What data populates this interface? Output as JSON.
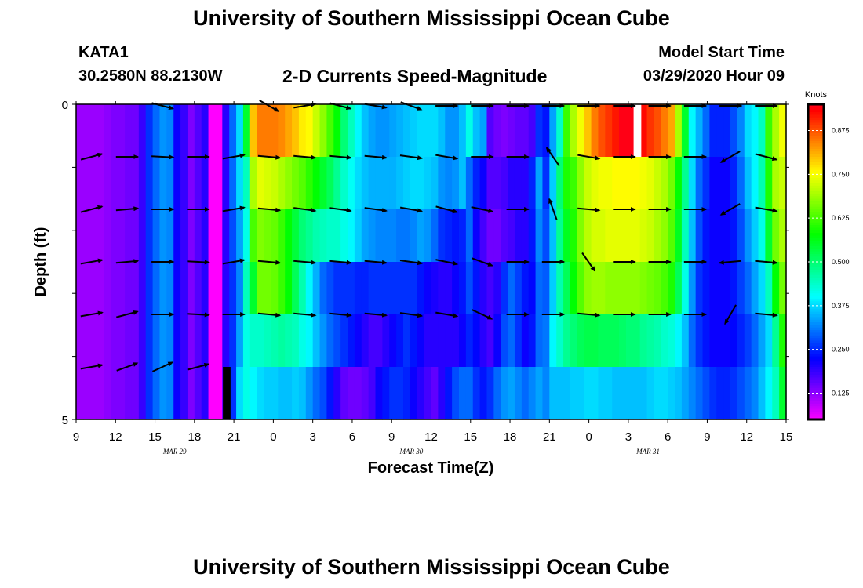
{
  "header": {
    "title": "University of Southern Mississippi Ocean Cube",
    "station": "KATA1",
    "coords": "30.2580N 88.2130W",
    "subtitle": "2-D Currents Speed-Magnitude",
    "model_start_label": "Model Start Time",
    "model_start_value": "03/29/2020 Hour 09"
  },
  "footer": {
    "title": "University of Southern Mississippi Ocean Cube"
  },
  "chart_data": {
    "type": "heatmap",
    "xlabel": "Forecast Time(Z)",
    "ylabel": "Depth (ft)",
    "x_ticks": [
      "9",
      "12",
      "15",
      "18",
      "21",
      "0",
      "3",
      "6",
      "9",
      "12",
      "15",
      "18",
      "21",
      "0",
      "3",
      "6",
      "9",
      "12",
      "15"
    ],
    "date_labels": [
      {
        "label": "MAR 29",
        "tick_index": 2.5
      },
      {
        "label": "MAR 30",
        "tick_index": 8.5
      },
      {
        "label": "MAR 31",
        "tick_index": 14.5
      }
    ],
    "y_ticks": [
      "0",
      "5"
    ],
    "ylim": [
      0,
      5
    ],
    "colorbar": {
      "title": "Knots",
      "ticks": [
        "0.125",
        "0.250",
        "0.375",
        "0.500",
        "0.625",
        "0.750",
        "0.875"
      ],
      "range": [
        0.05,
        0.95
      ]
    },
    "layer_speeds": [
      [
        0.12,
        0.12,
        0.12,
        0.12,
        0.13,
        0.14,
        0.14,
        0.15,
        0.15,
        0.19,
        0.26,
        0.3,
        0.33,
        0.32,
        0.22,
        0.19,
        0.14,
        0.17,
        0.2,
        0.05,
        0.05,
        0.2,
        0.3,
        0.38,
        0.55,
        0.8,
        0.85,
        0.85,
        0.85,
        0.84,
        0.82,
        0.8,
        0.77,
        0.76,
        0.72,
        0.68,
        0.63,
        0.58,
        0.5,
        0.45,
        0.4,
        0.36,
        0.34,
        0.33,
        0.33,
        0.34,
        0.35,
        0.36,
        0.37,
        0.38,
        0.38,
        0.38,
        0.36,
        0.33,
        0.33,
        0.36,
        0.42,
        0.36,
        0.34,
        0.17,
        0.15,
        0.14,
        0.15,
        0.16,
        0.16,
        0.18,
        0.26,
        0.24,
        0.34,
        0.44,
        0.62,
        0.7,
        0.75,
        0.8,
        0.85,
        0.88,
        0.9,
        0.92,
        0.95,
        0.95,
        0.95,
        0.93,
        0.9,
        0.88,
        0.85,
        0.82,
        0.7,
        0.55,
        0.4,
        0.35,
        0.3,
        0.25,
        0.25,
        0.25,
        0.28,
        0.32,
        0.38,
        0.4,
        0.45,
        0.62,
        0.7,
        0.75
      ],
      [
        0.12,
        0.12,
        0.12,
        0.12,
        0.13,
        0.14,
        0.14,
        0.15,
        0.15,
        0.19,
        0.26,
        0.3,
        0.33,
        0.32,
        0.22,
        0.19,
        0.14,
        0.17,
        0.2,
        0.05,
        0.05,
        0.2,
        0.3,
        0.38,
        0.45,
        0.7,
        0.74,
        0.73,
        0.72,
        0.7,
        0.68,
        0.66,
        0.64,
        0.61,
        0.58,
        0.55,
        0.52,
        0.48,
        0.44,
        0.41,
        0.38,
        0.36,
        0.35,
        0.35,
        0.35,
        0.35,
        0.36,
        0.37,
        0.38,
        0.38,
        0.37,
        0.36,
        0.33,
        0.32,
        0.33,
        0.36,
        0.3,
        0.25,
        0.22,
        0.17,
        0.17,
        0.18,
        0.2,
        0.2,
        0.2,
        0.25,
        0.34,
        0.26,
        0.37,
        0.5,
        0.6,
        0.62,
        0.68,
        0.72,
        0.74,
        0.75,
        0.75,
        0.76,
        0.76,
        0.76,
        0.76,
        0.75,
        0.74,
        0.72,
        0.7,
        0.66,
        0.58,
        0.48,
        0.38,
        0.3,
        0.26,
        0.22,
        0.22,
        0.22,
        0.25,
        0.3,
        0.36,
        0.4,
        0.46,
        0.6,
        0.7,
        0.72
      ],
      [
        0.12,
        0.12,
        0.12,
        0.12,
        0.13,
        0.14,
        0.14,
        0.15,
        0.15,
        0.19,
        0.26,
        0.3,
        0.33,
        0.32,
        0.22,
        0.19,
        0.14,
        0.17,
        0.2,
        0.05,
        0.05,
        0.2,
        0.28,
        0.34,
        0.42,
        0.63,
        0.67,
        0.66,
        0.65,
        0.62,
        0.58,
        0.54,
        0.5,
        0.48,
        0.46,
        0.45,
        0.44,
        0.44,
        0.42,
        0.4,
        0.37,
        0.34,
        0.33,
        0.32,
        0.32,
        0.32,
        0.31,
        0.31,
        0.32,
        0.34,
        0.33,
        0.3,
        0.26,
        0.25,
        0.24,
        0.25,
        0.3,
        0.22,
        0.18,
        0.15,
        0.15,
        0.17,
        0.18,
        0.2,
        0.2,
        0.24,
        0.32,
        0.28,
        0.36,
        0.48,
        0.56,
        0.6,
        0.67,
        0.71,
        0.73,
        0.73,
        0.74,
        0.74,
        0.74,
        0.74,
        0.74,
        0.73,
        0.72,
        0.7,
        0.68,
        0.64,
        0.56,
        0.45,
        0.36,
        0.28,
        0.24,
        0.22,
        0.22,
        0.22,
        0.24,
        0.28,
        0.33,
        0.37,
        0.42,
        0.55,
        0.66,
        0.7
      ],
      [
        0.12,
        0.12,
        0.12,
        0.12,
        0.13,
        0.14,
        0.14,
        0.15,
        0.15,
        0.19,
        0.26,
        0.3,
        0.33,
        0.32,
        0.22,
        0.19,
        0.14,
        0.17,
        0.2,
        0.05,
        0.05,
        0.2,
        0.26,
        0.32,
        0.45,
        0.55,
        0.66,
        0.66,
        0.65,
        0.62,
        0.58,
        0.52,
        0.46,
        0.4,
        0.35,
        0.3,
        0.28,
        0.26,
        0.26,
        0.26,
        0.25,
        0.25,
        0.26,
        0.26,
        0.26,
        0.26,
        0.26,
        0.26,
        0.26,
        0.24,
        0.22,
        0.21,
        0.2,
        0.2,
        0.22,
        0.24,
        0.28,
        0.24,
        0.2,
        0.18,
        0.2,
        0.26,
        0.3,
        0.27,
        0.24,
        0.23,
        0.3,
        0.29,
        0.37,
        0.46,
        0.52,
        0.58,
        0.64,
        0.68,
        0.69,
        0.69,
        0.68,
        0.68,
        0.68,
        0.68,
        0.68,
        0.67,
        0.66,
        0.65,
        0.63,
        0.6,
        0.52,
        0.42,
        0.33,
        0.26,
        0.24,
        0.22,
        0.22,
        0.22,
        0.24,
        0.27,
        0.3,
        0.34,
        0.38,
        0.45,
        0.58,
        0.66
      ],
      [
        0.12,
        0.12,
        0.12,
        0.12,
        0.13,
        0.14,
        0.14,
        0.15,
        0.15,
        0.19,
        0.26,
        0.3,
        0.33,
        0.32,
        0.22,
        0.19,
        0.14,
        0.17,
        0.2,
        0.05,
        0.05,
        0.2,
        0.26,
        0.34,
        0.42,
        0.44,
        0.44,
        0.45,
        0.46,
        0.47,
        0.46,
        0.45,
        0.42,
        0.4,
        0.36,
        0.33,
        0.3,
        0.28,
        0.26,
        0.24,
        0.22,
        0.2,
        0.18,
        0.18,
        0.2,
        0.22,
        0.24,
        0.26,
        0.24,
        0.22,
        0.2,
        0.2,
        0.2,
        0.2,
        0.2,
        0.22,
        0.25,
        0.23,
        0.2,
        0.18,
        0.22,
        0.28,
        0.3,
        0.26,
        0.22,
        0.24,
        0.3,
        0.31,
        0.4,
        0.44,
        0.48,
        0.5,
        0.52,
        0.53,
        0.53,
        0.52,
        0.52,
        0.52,
        0.51,
        0.5,
        0.5,
        0.48,
        0.47,
        0.46,
        0.44,
        0.43,
        0.4,
        0.36,
        0.3,
        0.26,
        0.24,
        0.22,
        0.22,
        0.22,
        0.23,
        0.25,
        0.27,
        0.3,
        0.34,
        0.38,
        0.48,
        0.6
      ],
      [
        0.12,
        0.12,
        0.12,
        0.12,
        0.13,
        0.14,
        0.14,
        0.15,
        0.15,
        0.19,
        0.26,
        0.3,
        0.33,
        0.32,
        0.22,
        0.19,
        0.14,
        0.17,
        0.2,
        0.05,
        0.05,
        0.2,
        0.26,
        0.38,
        0.42,
        0.4,
        0.38,
        0.37,
        0.37,
        0.36,
        0.36,
        0.37,
        0.36,
        0.33,
        0.3,
        0.28,
        0.24,
        0.2,
        0.16,
        0.15,
        0.15,
        0.16,
        0.18,
        0.22,
        0.24,
        0.26,
        0.26,
        0.25,
        0.22,
        0.2,
        0.18,
        0.16,
        0.2,
        0.24,
        0.28,
        0.3,
        0.3,
        0.26,
        0.24,
        0.26,
        0.3,
        0.33,
        0.34,
        0.32,
        0.3,
        0.32,
        0.34,
        0.32,
        0.36,
        0.36,
        0.36,
        0.37,
        0.37,
        0.38,
        0.38,
        0.37,
        0.37,
        0.36,
        0.36,
        0.36,
        0.36,
        0.36,
        0.37,
        0.38,
        0.38,
        0.37,
        0.36,
        0.34,
        0.32,
        0.3,
        0.28,
        0.26,
        0.25,
        0.25,
        0.26,
        0.28,
        0.3,
        0.32,
        0.36,
        0.4,
        0.45,
        0.55
      ]
    ],
    "blank_cells": [
      {
        "layer": 0,
        "col": 80
      },
      {
        "layer": 5,
        "col": 21
      }
    ],
    "blank_cell_colors": [
      "#ffffff",
      "#000000"
    ],
    "arrow_times": [
      0.7,
      2.5,
      4.3,
      6.1,
      7.9,
      9.7,
      11.5,
      13.3,
      15.1,
      16.9,
      18.7,
      20.5,
      22.3,
      24.1,
      25.9,
      27.7,
      29.5,
      31.3,
      33.1,
      34.9
    ],
    "vector_dirs_deg": [
      [
        0,
        10,
        -15,
        -20,
        0,
        -30,
        10,
        -15,
        -10,
        -20,
        0,
        0,
        0,
        0,
        0,
        0,
        0,
        0,
        0,
        0
      ],
      [
        15,
        0,
        -3,
        0,
        10,
        -5,
        -5,
        -5,
        -5,
        -8,
        -10,
        0,
        0,
        125,
        -10,
        0,
        0,
        0,
        -150,
        -15
      ],
      [
        15,
        5,
        0,
        0,
        10,
        -5,
        -8,
        -8,
        -8,
        -10,
        -15,
        -12,
        0,
        110,
        -5,
        0,
        0,
        0,
        -150,
        -10
      ],
      [
        10,
        5,
        0,
        -3,
        10,
        -5,
        -5,
        -5,
        -5,
        -8,
        -12,
        -20,
        0,
        0,
        -55,
        0,
        0,
        0,
        -175,
        -5
      ],
      [
        10,
        15,
        0,
        -3,
        0,
        -5,
        -5,
        -5,
        -5,
        -8,
        -10,
        -25,
        0,
        0,
        -5,
        0,
        0,
        0,
        -120,
        -5
      ],
      [
        10,
        20,
        25,
        15,
        -15,
        0,
        0,
        0,
        0,
        0,
        0,
        0,
        0,
        0,
        0,
        0,
        0,
        0,
        0,
        0
      ]
    ],
    "vector_visible": [
      [
        0,
        0,
        1,
        0,
        0,
        1,
        1,
        1,
        1,
        1,
        1,
        1,
        1,
        1,
        1,
        1,
        1,
        1,
        1,
        1
      ],
      [
        1,
        1,
        1,
        1,
        1,
        1,
        1,
        1,
        1,
        1,
        1,
        1,
        1,
        1,
        1,
        1,
        1,
        1,
        1,
        1
      ],
      [
        1,
        1,
        1,
        1,
        1,
        1,
        1,
        1,
        1,
        1,
        1,
        1,
        1,
        1,
        1,
        1,
        1,
        1,
        1,
        1
      ],
      [
        1,
        1,
        1,
        1,
        1,
        1,
        1,
        1,
        1,
        1,
        1,
        1,
        1,
        1,
        1,
        1,
        1,
        1,
        1,
        1
      ],
      [
        1,
        1,
        1,
        1,
        1,
        1,
        1,
        1,
        1,
        1,
        1,
        1,
        1,
        1,
        1,
        1,
        1,
        1,
        1,
        1
      ],
      [
        1,
        1,
        1,
        1,
        0,
        0,
        0,
        0,
        0,
        0,
        0,
        0,
        0,
        0,
        0,
        0,
        0,
        0,
        0,
        0
      ]
    ],
    "vector_color": "#000000",
    "frame_color": "#000000"
  }
}
